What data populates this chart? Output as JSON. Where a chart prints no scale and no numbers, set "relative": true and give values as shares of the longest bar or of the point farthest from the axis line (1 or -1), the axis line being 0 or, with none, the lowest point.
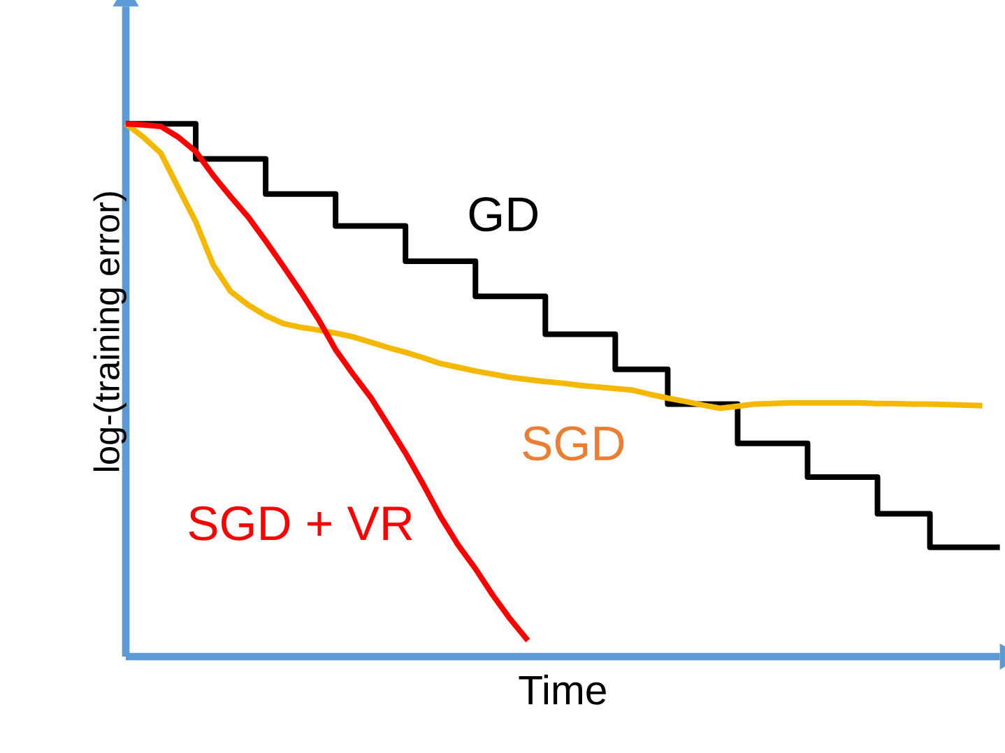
{
  "chart_data": {
    "type": "line",
    "relative": true,
    "xlabel": "Time",
    "ylabel": "log-(training error)",
    "legend": false,
    "marker": "none",
    "line_style": "solid",
    "categories": [
      null,
      null,
      null,
      null,
      null,
      null,
      null,
      null,
      null,
      null,
      null,
      null,
      null,
      null,
      null,
      null,
      null,
      null,
      null,
      null,
      null,
      null,
      null,
      null,
      null,
      null,
      null,
      null,
      null,
      null,
      null,
      null,
      null,
      null,
      null,
      null,
      null,
      null,
      null,
      null,
      null,
      null,
      null,
      null,
      null,
      null,
      null,
      null,
      null,
      null,
      null
    ],
    "series": [
      {
        "name": "GD",
        "type": "step",
        "color": "#000000",
        "values": [
          1.0,
          1.0,
          1.0,
          1.0,
          0.934,
          0.934,
          0.934,
          0.934,
          0.868,
          0.868,
          0.868,
          0.868,
          0.808,
          0.808,
          0.808,
          0.808,
          0.742,
          0.742,
          0.742,
          0.742,
          0.676,
          0.676,
          0.676,
          0.676,
          0.605,
          0.605,
          0.605,
          0.605,
          0.539,
          0.539,
          0.539,
          0.474,
          0.474,
          0.474,
          0.474,
          0.4,
          0.4,
          0.4,
          0.4,
          0.337,
          0.337,
          0.337,
          0.337,
          0.268,
          0.268,
          0.268,
          0.205,
          0.205,
          0.205,
          0.205,
          0.205
        ]
      },
      {
        "name": "SGD",
        "type": "line",
        "color": "#f5b800",
        "values": [
          1.0,
          0.975,
          0.945,
          0.88,
          0.816,
          0.735,
          0.685,
          0.66,
          0.64,
          0.625,
          0.618,
          0.613,
          0.607,
          0.6,
          0.59,
          0.58,
          0.571,
          0.561,
          0.55,
          0.543,
          0.536,
          0.53,
          0.524,
          0.52,
          0.516,
          0.513,
          0.509,
          0.506,
          0.503,
          0.5,
          0.492,
          0.485,
          0.479,
          0.472,
          0.466,
          0.47,
          0.474,
          0.475,
          0.476,
          0.476,
          0.476,
          0.476,
          0.476,
          0.475,
          0.475,
          0.474,
          0.474,
          0.473,
          0.472,
          0.471,
          null
        ]
      },
      {
        "name": "SGD + VR",
        "type": "line",
        "color": "#ff0000",
        "values": [
          1.0,
          0.998,
          0.995,
          0.975,
          0.948,
          0.903,
          0.863,
          0.825,
          0.78,
          0.733,
          0.685,
          0.634,
          0.576,
          0.53,
          0.487,
          0.435,
          0.382,
          0.324,
          0.263,
          0.21,
          0.165,
          0.115,
          0.07,
          0.03,
          null,
          null,
          null,
          null,
          null,
          null,
          null,
          null,
          null,
          null,
          null,
          null,
          null,
          null,
          null,
          null,
          null,
          null,
          null,
          null,
          null,
          null,
          null,
          null,
          null,
          null,
          null
        ]
      }
    ]
  }
}
